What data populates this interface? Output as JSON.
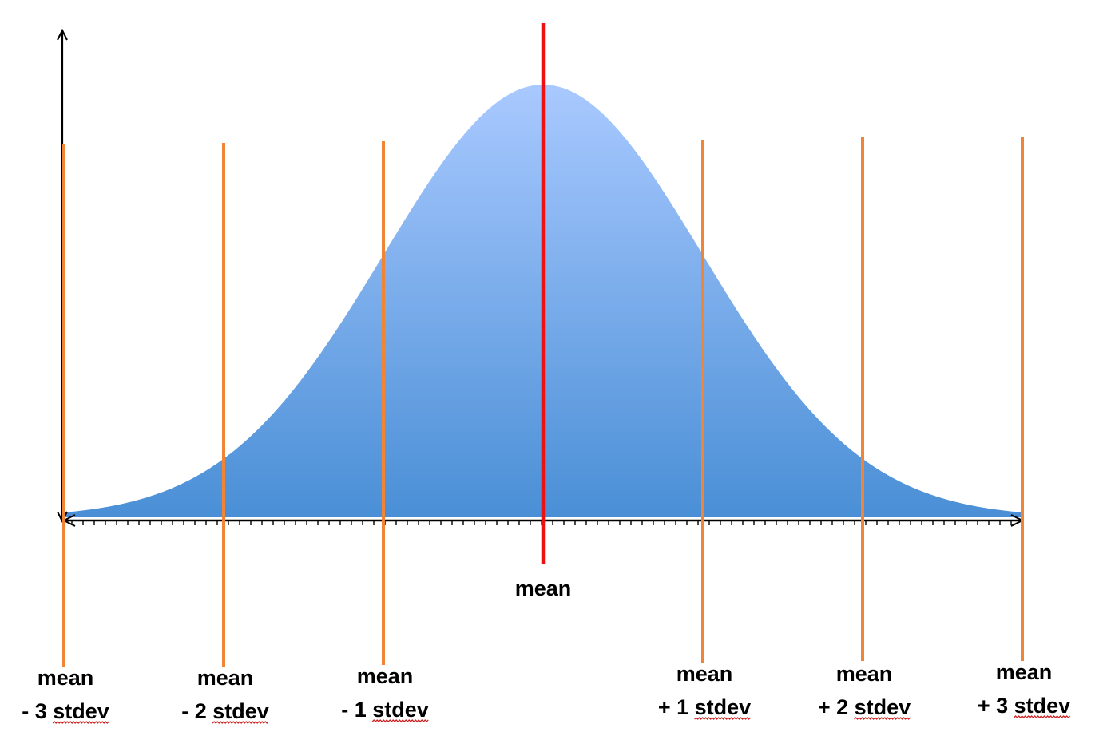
{
  "mean_label": "mean",
  "lines": [
    {
      "line1": "mean",
      "line2_prefix": "- 3 ",
      "line2_word": "stdev",
      "sigma": -3
    },
    {
      "line1": "mean",
      "line2_prefix": "- 2 ",
      "line2_word": "stdev",
      "sigma": -2
    },
    {
      "line1": "mean",
      "line2_prefix": "- 1 ",
      "line2_word": "stdev",
      "sigma": -1
    },
    {
      "line1": "mean",
      "line2_prefix": "+ 1 ",
      "line2_word": "stdev",
      "sigma": 1
    },
    {
      "line1": "mean",
      "line2_prefix": "+ 2 ",
      "line2_word": "stdev",
      "sigma": 2
    },
    {
      "line1": "mean",
      "line2_prefix": "+ 3 ",
      "line2_word": "stdev",
      "sigma": 3
    }
  ],
  "colors": {
    "curve_top": "#a9c9ff",
    "curve_bottom": "#4a8fd6",
    "mean_line": "#ee1111",
    "stdev_line": "#ef8535",
    "axis": "#000000",
    "spellcheck": "#d02020"
  }
}
